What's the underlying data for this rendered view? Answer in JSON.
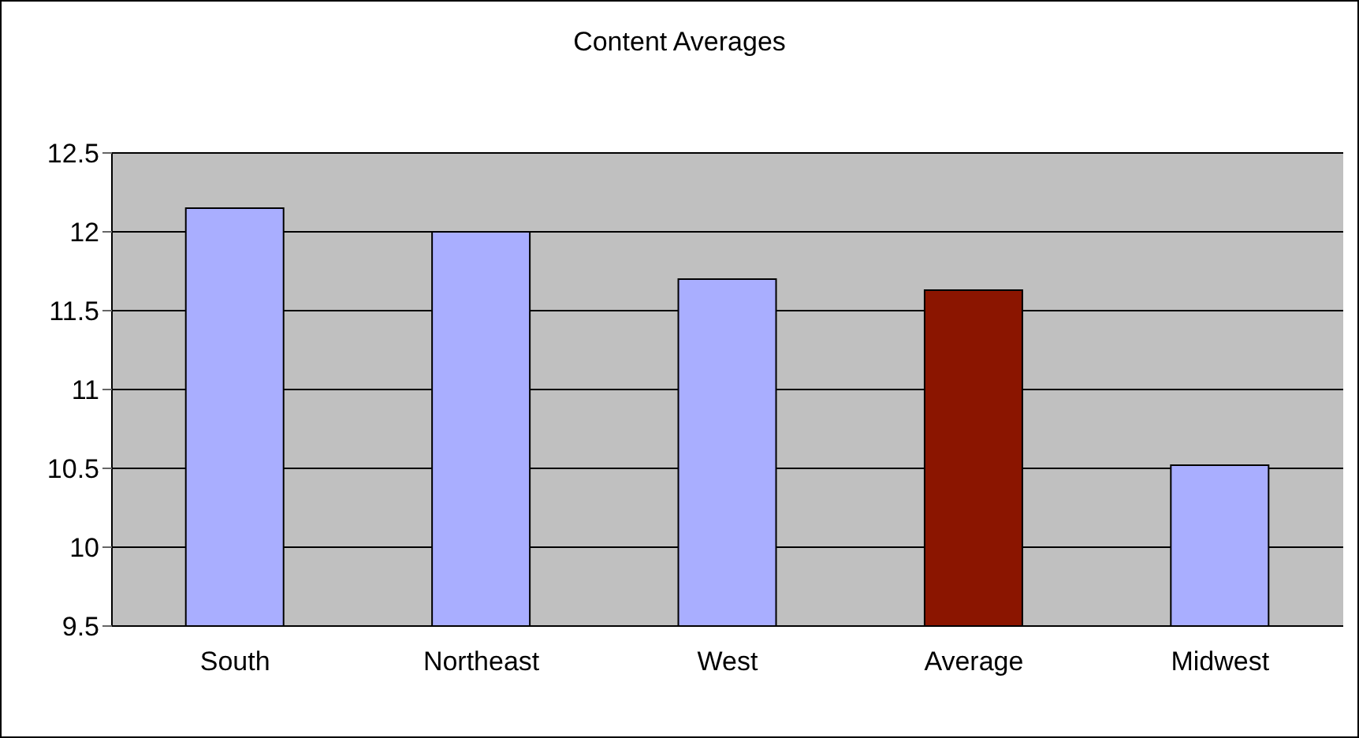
{
  "chart_data": {
    "type": "bar",
    "title": "Content Averages",
    "categories": [
      "South",
      "Northeast",
      "West",
      "Average",
      "Midwest"
    ],
    "values": [
      12.15,
      12.0,
      11.7,
      11.63,
      10.52
    ],
    "colors": [
      "#a9aeff",
      "#a9aeff",
      "#a9aeff",
      "#8b1500",
      "#a9aeff"
    ],
    "ylim": [
      9.5,
      12.5
    ],
    "yticks": [
      9.5,
      10,
      10.5,
      11,
      11.5,
      12,
      12.5
    ],
    "grid": "y"
  }
}
